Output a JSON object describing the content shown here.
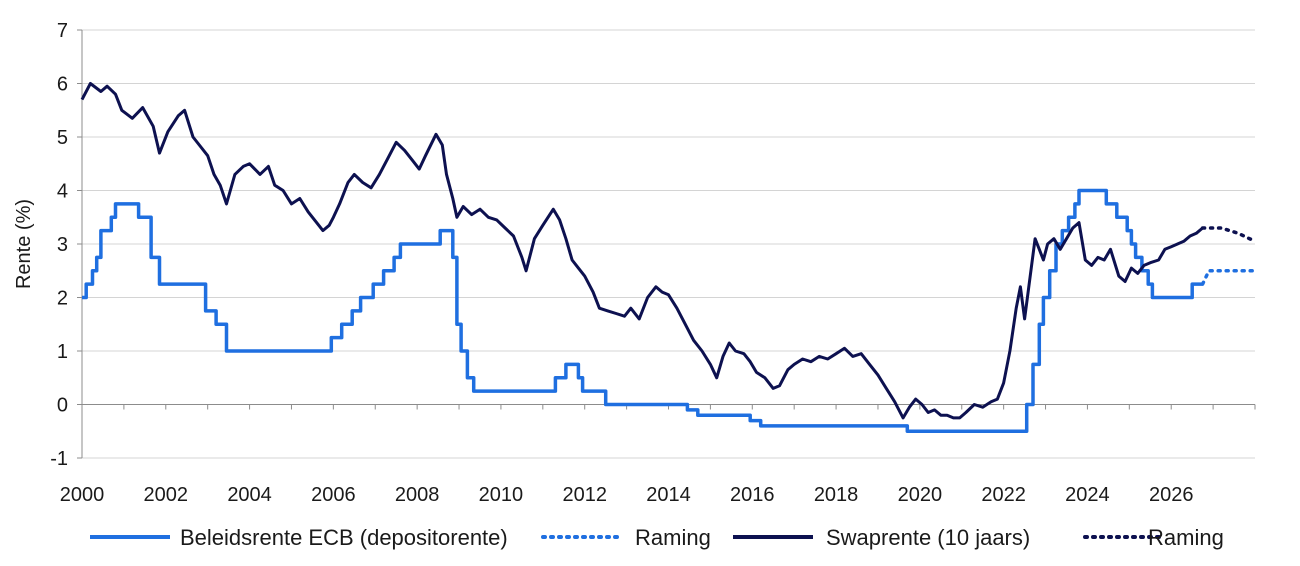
{
  "chart_data": {
    "type": "line",
    "title": "",
    "xlabel": "",
    "ylabel": "Rente (%)",
    "xlim": [
      2000,
      2028
    ],
    "ylim": [
      -1,
      7
    ],
    "x_ticks": [
      2000,
      2002,
      2004,
      2006,
      2008,
      2010,
      2012,
      2014,
      2016,
      2018,
      2020,
      2022,
      2024,
      2026
    ],
    "x_tick_labels": [
      "2000",
      "2002",
      "2004",
      "2006",
      "2008",
      "2010",
      "2012",
      "2014",
      "2016",
      "2018",
      "2020",
      "2022",
      "2024",
      "2026"
    ],
    "y_ticks": [
      -1,
      0,
      1,
      2,
      3,
      4,
      5,
      6,
      7
    ],
    "y_tick_labels": [
      "-1",
      "0",
      "1",
      "2",
      "3",
      "4",
      "5",
      "6",
      "7"
    ],
    "grid": "horizontal",
    "legend_position": "bottom",
    "colors": {
      "ecb": "#1f6fe0",
      "swap": "#0d1150"
    },
    "series": [
      {
        "name": "Beleidsrente ECB (depositorente)",
        "style": "solid-step",
        "points": [
          [
            2000.0,
            2.0
          ],
          [
            2000.1,
            2.25
          ],
          [
            2000.25,
            2.5
          ],
          [
            2000.35,
            2.75
          ],
          [
            2000.45,
            3.25
          ],
          [
            2000.7,
            3.5
          ],
          [
            2000.8,
            3.75
          ],
          [
            2001.35,
            3.5
          ],
          [
            2001.65,
            2.75
          ],
          [
            2001.85,
            2.25
          ],
          [
            2002.95,
            1.75
          ],
          [
            2003.2,
            1.5
          ],
          [
            2003.45,
            1.0
          ],
          [
            2005.95,
            1.25
          ],
          [
            2006.2,
            1.5
          ],
          [
            2006.45,
            1.75
          ],
          [
            2006.65,
            2.0
          ],
          [
            2006.95,
            2.25
          ],
          [
            2007.2,
            2.5
          ],
          [
            2007.45,
            2.75
          ],
          [
            2007.6,
            3.0
          ],
          [
            2008.55,
            3.25
          ],
          [
            2008.85,
            2.75
          ],
          [
            2008.95,
            1.5
          ],
          [
            2009.05,
            1.0
          ],
          [
            2009.2,
            0.5
          ],
          [
            2009.35,
            0.25
          ],
          [
            2011.3,
            0.5
          ],
          [
            2011.55,
            0.75
          ],
          [
            2011.85,
            0.5
          ],
          [
            2011.95,
            0.25
          ],
          [
            2012.5,
            0.0
          ],
          [
            2014.45,
            -0.1
          ],
          [
            2014.7,
            -0.2
          ],
          [
            2015.95,
            -0.3
          ],
          [
            2016.2,
            -0.4
          ],
          [
            2019.7,
            -0.5
          ],
          [
            2022.55,
            0.0
          ],
          [
            2022.7,
            0.75
          ],
          [
            2022.85,
            1.5
          ],
          [
            2022.95,
            2.0
          ],
          [
            2023.1,
            2.5
          ],
          [
            2023.25,
            3.0
          ],
          [
            2023.4,
            3.25
          ],
          [
            2023.55,
            3.5
          ],
          [
            2023.7,
            3.75
          ],
          [
            2023.8,
            4.0
          ],
          [
            2024.45,
            3.75
          ],
          [
            2024.7,
            3.5
          ],
          [
            2024.95,
            3.25
          ],
          [
            2025.05,
            3.0
          ],
          [
            2025.15,
            2.75
          ],
          [
            2025.3,
            2.5
          ],
          [
            2025.45,
            2.25
          ],
          [
            2025.55,
            2.0
          ],
          [
            2026.5,
            2.25
          ],
          [
            2026.75,
            2.25
          ]
        ]
      },
      {
        "name": "Raming",
        "style": "dotted",
        "points": [
          [
            2026.75,
            2.25
          ],
          [
            2026.9,
            2.5
          ],
          [
            2028.0,
            2.5
          ]
        ]
      },
      {
        "name": "Swaprente (10 jaars)",
        "style": "solid",
        "points": [
          [
            2000.0,
            5.7
          ],
          [
            2000.2,
            6.0
          ],
          [
            2000.45,
            5.85
          ],
          [
            2000.6,
            5.95
          ],
          [
            2000.8,
            5.8
          ],
          [
            2000.95,
            5.5
          ],
          [
            2001.2,
            5.35
          ],
          [
            2001.45,
            5.55
          ],
          [
            2001.7,
            5.2
          ],
          [
            2001.85,
            4.7
          ],
          [
            2002.05,
            5.1
          ],
          [
            2002.3,
            5.4
          ],
          [
            2002.45,
            5.5
          ],
          [
            2002.65,
            5.0
          ],
          [
            2002.8,
            4.85
          ],
          [
            2003.0,
            4.65
          ],
          [
            2003.15,
            4.3
          ],
          [
            2003.3,
            4.1
          ],
          [
            2003.45,
            3.75
          ],
          [
            2003.65,
            4.3
          ],
          [
            2003.85,
            4.45
          ],
          [
            2004.0,
            4.5
          ],
          [
            2004.25,
            4.3
          ],
          [
            2004.45,
            4.45
          ],
          [
            2004.6,
            4.1
          ],
          [
            2004.8,
            4.0
          ],
          [
            2005.0,
            3.75
          ],
          [
            2005.2,
            3.85
          ],
          [
            2005.4,
            3.6
          ],
          [
            2005.6,
            3.4
          ],
          [
            2005.75,
            3.25
          ],
          [
            2005.9,
            3.35
          ],
          [
            2006.0,
            3.5
          ],
          [
            2006.15,
            3.75
          ],
          [
            2006.35,
            4.15
          ],
          [
            2006.5,
            4.3
          ],
          [
            2006.7,
            4.15
          ],
          [
            2006.9,
            4.05
          ],
          [
            2007.1,
            4.3
          ],
          [
            2007.3,
            4.6
          ],
          [
            2007.5,
            4.9
          ],
          [
            2007.7,
            4.75
          ],
          [
            2007.9,
            4.55
          ],
          [
            2008.05,
            4.4
          ],
          [
            2008.2,
            4.65
          ],
          [
            2008.45,
            5.05
          ],
          [
            2008.6,
            4.85
          ],
          [
            2008.7,
            4.3
          ],
          [
            2008.85,
            3.85
          ],
          [
            2008.95,
            3.5
          ],
          [
            2009.1,
            3.7
          ],
          [
            2009.3,
            3.55
          ],
          [
            2009.5,
            3.65
          ],
          [
            2009.7,
            3.5
          ],
          [
            2009.9,
            3.45
          ],
          [
            2010.1,
            3.3
          ],
          [
            2010.3,
            3.15
          ],
          [
            2010.5,
            2.75
          ],
          [
            2010.6,
            2.5
          ],
          [
            2010.8,
            3.1
          ],
          [
            2011.0,
            3.35
          ],
          [
            2011.25,
            3.65
          ],
          [
            2011.4,
            3.45
          ],
          [
            2011.55,
            3.1
          ],
          [
            2011.7,
            2.7
          ],
          [
            2011.85,
            2.55
          ],
          [
            2012.0,
            2.4
          ],
          [
            2012.2,
            2.1
          ],
          [
            2012.35,
            1.8
          ],
          [
            2012.55,
            1.75
          ],
          [
            2012.75,
            1.7
          ],
          [
            2012.95,
            1.65
          ],
          [
            2013.1,
            1.8
          ],
          [
            2013.3,
            1.6
          ],
          [
            2013.5,
            2.0
          ],
          [
            2013.7,
            2.2
          ],
          [
            2013.85,
            2.1
          ],
          [
            2014.0,
            2.05
          ],
          [
            2014.2,
            1.8
          ],
          [
            2014.4,
            1.5
          ],
          [
            2014.6,
            1.2
          ],
          [
            2014.8,
            1.0
          ],
          [
            2015.0,
            0.75
          ],
          [
            2015.15,
            0.5
          ],
          [
            2015.3,
            0.9
          ],
          [
            2015.45,
            1.15
          ],
          [
            2015.6,
            1.0
          ],
          [
            2015.8,
            0.95
          ],
          [
            2015.95,
            0.8
          ],
          [
            2016.1,
            0.6
          ],
          [
            2016.3,
            0.5
          ],
          [
            2016.5,
            0.3
          ],
          [
            2016.65,
            0.35
          ],
          [
            2016.85,
            0.65
          ],
          [
            2017.0,
            0.75
          ],
          [
            2017.2,
            0.85
          ],
          [
            2017.4,
            0.8
          ],
          [
            2017.6,
            0.9
          ],
          [
            2017.8,
            0.85
          ],
          [
            2018.0,
            0.95
          ],
          [
            2018.2,
            1.05
          ],
          [
            2018.4,
            0.9
          ],
          [
            2018.6,
            0.95
          ],
          [
            2018.8,
            0.75
          ],
          [
            2019.0,
            0.55
          ],
          [
            2019.2,
            0.3
          ],
          [
            2019.4,
            0.05
          ],
          [
            2019.6,
            -0.25
          ],
          [
            2019.75,
            -0.05
          ],
          [
            2019.9,
            0.1
          ],
          [
            2020.05,
            0.0
          ],
          [
            2020.2,
            -0.15
          ],
          [
            2020.35,
            -0.1
          ],
          [
            2020.5,
            -0.2
          ],
          [
            2020.65,
            -0.2
          ],
          [
            2020.8,
            -0.25
          ],
          [
            2020.95,
            -0.25
          ],
          [
            2021.1,
            -0.15
          ],
          [
            2021.3,
            0.0
          ],
          [
            2021.5,
            -0.05
          ],
          [
            2021.7,
            0.05
          ],
          [
            2021.85,
            0.1
          ],
          [
            2022.0,
            0.4
          ],
          [
            2022.15,
            1.0
          ],
          [
            2022.3,
            1.8
          ],
          [
            2022.4,
            2.2
          ],
          [
            2022.5,
            1.6
          ],
          [
            2022.6,
            2.2
          ],
          [
            2022.75,
            3.1
          ],
          [
            2022.85,
            2.9
          ],
          [
            2022.95,
            2.7
          ],
          [
            2023.05,
            3.0
          ],
          [
            2023.2,
            3.1
          ],
          [
            2023.35,
            2.9
          ],
          [
            2023.5,
            3.1
          ],
          [
            2023.65,
            3.3
          ],
          [
            2023.8,
            3.4
          ],
          [
            2023.95,
            2.7
          ],
          [
            2024.1,
            2.6
          ],
          [
            2024.25,
            2.75
          ],
          [
            2024.4,
            2.7
          ],
          [
            2024.55,
            2.9
          ],
          [
            2024.75,
            2.4
          ],
          [
            2024.9,
            2.3
          ],
          [
            2025.05,
            2.55
          ],
          [
            2025.2,
            2.45
          ],
          [
            2025.35,
            2.6
          ],
          [
            2025.5,
            2.65
          ],
          [
            2025.7,
            2.7
          ],
          [
            2025.85,
            2.9
          ],
          [
            2026.0,
            2.95
          ],
          [
            2026.15,
            3.0
          ],
          [
            2026.3,
            3.05
          ],
          [
            2026.45,
            3.15
          ],
          [
            2026.6,
            3.2
          ],
          [
            2026.75,
            3.3
          ]
        ]
      },
      {
        "name": "Raming",
        "style": "dotted",
        "points": [
          [
            2026.75,
            3.3
          ],
          [
            2027.2,
            3.3
          ],
          [
            2027.6,
            3.2
          ],
          [
            2028.0,
            3.05
          ]
        ]
      }
    ]
  },
  "legend": [
    {
      "label": "Beleidsrente ECB (depositorente)",
      "style": "solid",
      "color": "#1f6fe0"
    },
    {
      "label": "Raming",
      "style": "dotted",
      "color": "#1f6fe0"
    },
    {
      "label": "Swaprente (10 jaars)",
      "style": "solid",
      "color": "#0d1150"
    },
    {
      "label": "Raming",
      "style": "dotted",
      "color": "#0d1150"
    }
  ]
}
